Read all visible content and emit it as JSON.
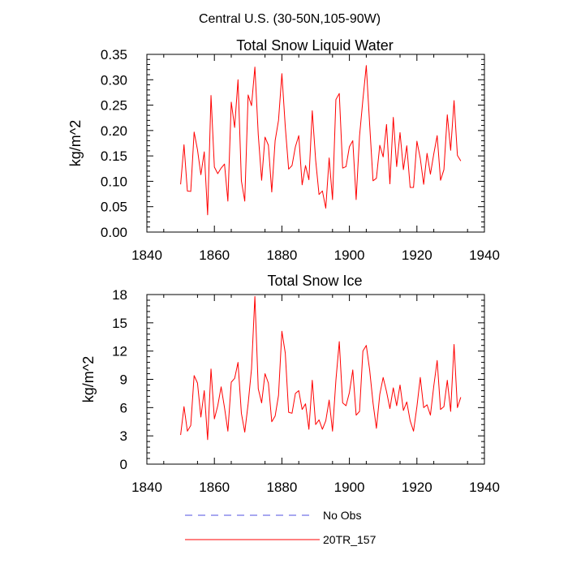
{
  "chart_data": [
    {
      "type": "line",
      "suptitle": "Central U.S. (30-50N,105-90W)",
      "title": "Total Snow Liquid Water",
      "xlabel": "",
      "ylabel": "kg/m^2",
      "xlim": [
        1840,
        1940
      ],
      "ylim": [
        0,
        0.35
      ],
      "xticks": [
        1840,
        1860,
        1880,
        1900,
        1920,
        1940
      ],
      "yticks": [
        0,
        0.05,
        0.1,
        0.15,
        0.2,
        0.25,
        0.3,
        0.35
      ],
      "ytick_labels": [
        "0.00",
        "0.05",
        "0.10",
        "0.15",
        "0.20",
        "0.25",
        "0.30",
        "0.35"
      ],
      "x_start": 1850,
      "series": [
        {
          "name": "20TR_157",
          "color": "#ff0000",
          "values": [
            0.094,
            0.172,
            0.081,
            0.08,
            0.197,
            0.162,
            0.113,
            0.158,
            0.034,
            0.269,
            0.128,
            0.115,
            0.126,
            0.134,
            0.061,
            0.256,
            0.206,
            0.3,
            0.101,
            0.061,
            0.27,
            0.249,
            0.325,
            0.192,
            0.102,
            0.187,
            0.171,
            0.079,
            0.18,
            0.22,
            0.312,
            0.208,
            0.124,
            0.131,
            0.168,
            0.19,
            0.093,
            0.131,
            0.103,
            0.239,
            0.142,
            0.074,
            0.081,
            0.047,
            0.146,
            0.064,
            0.261,
            0.273,
            0.126,
            0.129,
            0.168,
            0.18,
            0.064,
            0.189,
            0.261,
            0.328,
            0.212,
            0.101,
            0.106,
            0.171,
            0.148,
            0.212,
            0.095,
            0.226,
            0.129,
            0.196,
            0.123,
            0.17,
            0.088,
            0.088,
            0.179,
            0.145,
            0.094,
            0.155,
            0.114,
            0.154,
            0.19,
            0.102,
            0.123,
            0.231,
            0.161,
            0.259,
            0.151,
            0.14
          ]
        }
      ]
    },
    {
      "type": "line",
      "title": "Total Snow Ice",
      "xlabel": "",
      "ylabel": "kg/m^2",
      "xlim": [
        1840,
        1940
      ],
      "ylim": [
        0,
        18
      ],
      "xticks": [
        1840,
        1860,
        1880,
        1900,
        1920,
        1940
      ],
      "yticks": [
        0,
        3,
        6,
        9,
        12,
        15,
        18
      ],
      "ytick_labels": [
        "0",
        "3",
        "6",
        "9",
        "12",
        "15",
        "18"
      ],
      "x_start": 1850,
      "series": [
        {
          "name": "20TR_157",
          "color": "#ff0000",
          "values": [
            3.1,
            6.1,
            3.5,
            4.1,
            9.4,
            8.6,
            5.0,
            7.8,
            2.6,
            10.1,
            4.8,
            6.2,
            8.2,
            6.0,
            3.5,
            8.7,
            9.1,
            10.8,
            5.4,
            3.4,
            6.4,
            10.1,
            17.8,
            8.0,
            6.5,
            9.6,
            8.6,
            4.5,
            5.1,
            7.3,
            14.1,
            11.8,
            5.5,
            5.4,
            7.5,
            7.8,
            5.8,
            6.4,
            3.7,
            8.9,
            4.2,
            4.7,
            3.7,
            4.6,
            6.8,
            3.5,
            8.9,
            13.0,
            6.5,
            6.2,
            7.6,
            10.0,
            5.2,
            5.6,
            12.0,
            12.6,
            10.0,
            6.5,
            3.8,
            7.4,
            9.2,
            7.7,
            5.9,
            8.1,
            6.2,
            8.4,
            5.7,
            6.6,
            4.6,
            3.5,
            6.1,
            9.2,
            6.0,
            6.3,
            5.2,
            8.3,
            11.0,
            5.8,
            6.1,
            8.9,
            5.6,
            12.7,
            6.0,
            7.1
          ]
        }
      ]
    }
  ],
  "legend": {
    "items": [
      {
        "label": "No Obs",
        "color": "#4f4fe0",
        "style": "dashed"
      },
      {
        "label": "20TR_157",
        "color": "#ff0000",
        "style": "solid"
      }
    ]
  }
}
